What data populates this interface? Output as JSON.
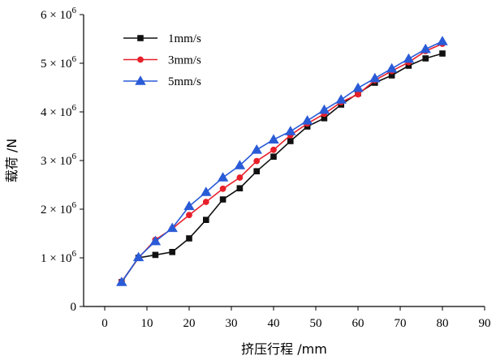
{
  "chart_data": {
    "type": "line",
    "xlabel": "挤压行程 /mm",
    "ylabel": "载荷 /N",
    "xlim": [
      -5,
      90
    ],
    "ylim": [
      0,
      6000000
    ],
    "xticks": [
      0,
      10,
      20,
      30,
      40,
      50,
      60,
      70,
      80,
      90
    ],
    "yticks": [
      0,
      1000000,
      2000000,
      3000000,
      4000000,
      5000000,
      6000000
    ],
    "ytick_labels": [
      {
        "mantissa": "0",
        "exponent": ""
      },
      {
        "mantissa": "1 × 10",
        "exponent": "6"
      },
      {
        "mantissa": "2 × 10",
        "exponent": "6"
      },
      {
        "mantissa": "3 × 10",
        "exponent": "6"
      },
      {
        "mantissa": "4 × 10",
        "exponent": "6"
      },
      {
        "mantissa": "5 × 10",
        "exponent": "6"
      },
      {
        "mantissa": "6 × 10",
        "exponent": "6"
      }
    ],
    "legend_position": "top-left",
    "grid": false,
    "series": [
      {
        "name": "1mm/s",
        "color": "#111111",
        "marker": "square",
        "x": [
          4,
          8,
          12,
          16,
          20,
          24,
          28,
          32,
          36,
          40,
          44,
          48,
          52,
          56,
          60,
          64,
          68,
          72,
          76,
          80
        ],
        "y": [
          500000,
          1000000,
          1060000,
          1120000,
          1400000,
          1780000,
          2200000,
          2430000,
          2780000,
          3080000,
          3400000,
          3700000,
          3870000,
          4150000,
          4380000,
          4600000,
          4750000,
          4950000,
          5100000,
          5200000
        ]
      },
      {
        "name": "3mm/s",
        "color": "#e8202a",
        "marker": "circle",
        "x": [
          4,
          8,
          12,
          16,
          20,
          24,
          28,
          32,
          36,
          40,
          44,
          48,
          52,
          56,
          60,
          64,
          68,
          72,
          76,
          80
        ],
        "y": [
          510000,
          1000000,
          1370000,
          1600000,
          1880000,
          2150000,
          2420000,
          2650000,
          2990000,
          3220000,
          3520000,
          3760000,
          3960000,
          4200000,
          4360000,
          4650000,
          4840000,
          5020000,
          5250000,
          5400000
        ]
      },
      {
        "name": "5mm/s",
        "color": "#2a5bd7",
        "marker": "triangle",
        "x": [
          4,
          8,
          12,
          16,
          20,
          24,
          28,
          32,
          36,
          40,
          44,
          48,
          52,
          56,
          60,
          64,
          68,
          72,
          76,
          80
        ],
        "y": [
          500000,
          1010000,
          1340000,
          1610000,
          2060000,
          2350000,
          2650000,
          2900000,
          3220000,
          3430000,
          3600000,
          3820000,
          4040000,
          4250000,
          4490000,
          4690000,
          4890000,
          5090000,
          5290000,
          5450000
        ]
      }
    ]
  }
}
